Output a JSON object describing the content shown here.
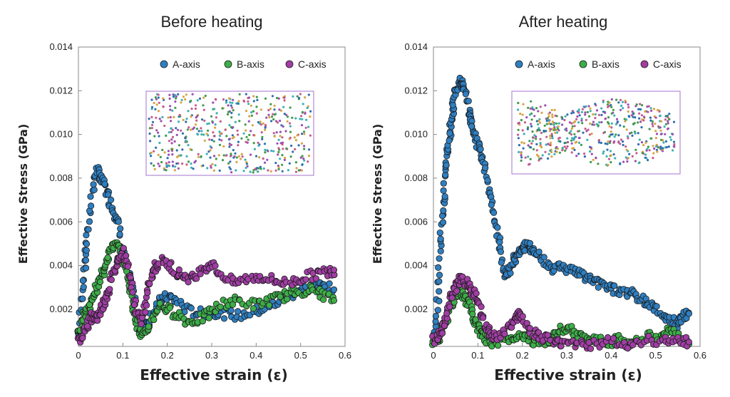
{
  "chart_data": [
    {
      "type": "scatter",
      "title": "Before heating",
      "xlabel": "Effective strain (ε)",
      "ylabel": "Effective Stress (GPa)",
      "xlim": [
        0,
        0.6
      ],
      "ylim": [
        0.0003,
        0.014
      ],
      "xticks": [
        "0",
        "0.1",
        "0.2",
        "0.3",
        "0.4",
        "0.5",
        "0.6"
      ],
      "yticks": [
        "0.002",
        "0.004",
        "0.006",
        "0.008",
        "0.010",
        "0.012",
        "0.014"
      ],
      "legend_position": "top-right",
      "inset": "molecular structure snapshot",
      "series": [
        {
          "name": "A-axis",
          "color": "#2f7fc1",
          "points": [
            [
              0,
              0.0007
            ],
            [
              0.01,
              0.003
            ],
            [
              0.015,
              0.0042
            ],
            [
              0.02,
              0.0052
            ],
            [
              0.03,
              0.0072
            ],
            [
              0.04,
              0.0084
            ],
            [
              0.05,
              0.008
            ],
            [
              0.06,
              0.0077
            ],
            [
              0.07,
              0.007
            ],
            [
              0.08,
              0.0065
            ],
            [
              0.09,
              0.006
            ],
            [
              0.1,
              0.0047
            ],
            [
              0.11,
              0.0038
            ],
            [
              0.12,
              0.003
            ],
            [
              0.13,
              0.002
            ],
            [
              0.14,
              0.0014
            ],
            [
              0.15,
              0.0011
            ],
            [
              0.16,
              0.0016
            ],
            [
              0.18,
              0.0023
            ],
            [
              0.2,
              0.0026
            ],
            [
              0.22,
              0.0024
            ],
            [
              0.25,
              0.0019
            ],
            [
              0.28,
              0.0018
            ],
            [
              0.3,
              0.0019
            ],
            [
              0.33,
              0.0018
            ],
            [
              0.36,
              0.0017
            ],
            [
              0.4,
              0.0019
            ],
            [
              0.43,
              0.0021
            ],
            [
              0.46,
              0.0025
            ],
            [
              0.49,
              0.0028
            ],
            [
              0.52,
              0.003
            ],
            [
              0.55,
              0.0031
            ],
            [
              0.575,
              0.0029
            ]
          ]
        },
        {
          "name": "B-axis",
          "color": "#3eae49",
          "points": [
            [
              0,
              0.0008
            ],
            [
              0.01,
              0.0016
            ],
            [
              0.02,
              0.002
            ],
            [
              0.03,
              0.0024
            ],
            [
              0.04,
              0.003
            ],
            [
              0.05,
              0.0034
            ],
            [
              0.06,
              0.004
            ],
            [
              0.07,
              0.0046
            ],
            [
              0.08,
              0.005
            ],
            [
              0.09,
              0.0048
            ],
            [
              0.1,
              0.0044
            ],
            [
              0.11,
              0.0036
            ],
            [
              0.12,
              0.0026
            ],
            [
              0.13,
              0.0014
            ],
            [
              0.14,
              0.0009
            ],
            [
              0.15,
              0.0008
            ],
            [
              0.16,
              0.0013
            ],
            [
              0.18,
              0.0022
            ],
            [
              0.2,
              0.002
            ],
            [
              0.22,
              0.0018
            ],
            [
              0.25,
              0.0014
            ],
            [
              0.28,
              0.0016
            ],
            [
              0.3,
              0.0019
            ],
            [
              0.33,
              0.0023
            ],
            [
              0.36,
              0.0024
            ],
            [
              0.4,
              0.0022
            ],
            [
              0.43,
              0.0024
            ],
            [
              0.46,
              0.0026
            ],
            [
              0.49,
              0.0028
            ],
            [
              0.52,
              0.0029
            ],
            [
              0.55,
              0.0027
            ],
            [
              0.575,
              0.0024
            ]
          ]
        },
        {
          "name": "C-axis",
          "color": "#a03ea3",
          "points": [
            [
              0,
              0.0005
            ],
            [
              0.01,
              0.0009
            ],
            [
              0.02,
              0.0013
            ],
            [
              0.03,
              0.0017
            ],
            [
              0.04,
              0.0016
            ],
            [
              0.05,
              0.002
            ],
            [
              0.06,
              0.0024
            ],
            [
              0.07,
              0.003
            ],
            [
              0.08,
              0.0038
            ],
            [
              0.09,
              0.0044
            ],
            [
              0.1,
              0.0046
            ],
            [
              0.11,
              0.004
            ],
            [
              0.12,
              0.003
            ],
            [
              0.13,
              0.002
            ],
            [
              0.14,
              0.0013
            ],
            [
              0.15,
              0.002
            ],
            [
              0.16,
              0.0032
            ],
            [
              0.17,
              0.0038
            ],
            [
              0.18,
              0.0042
            ],
            [
              0.2,
              0.0041
            ],
            [
              0.22,
              0.0037
            ],
            [
              0.24,
              0.0035
            ],
            [
              0.26,
              0.0034
            ],
            [
              0.28,
              0.0039
            ],
            [
              0.3,
              0.0041
            ],
            [
              0.32,
              0.0036
            ],
            [
              0.35,
              0.0032
            ],
            [
              0.38,
              0.0034
            ],
            [
              0.41,
              0.0035
            ],
            [
              0.44,
              0.0033
            ],
            [
              0.47,
              0.0032
            ],
            [
              0.5,
              0.0034
            ],
            [
              0.53,
              0.0036
            ],
            [
              0.56,
              0.0037
            ],
            [
              0.575,
              0.0038
            ]
          ]
        }
      ]
    },
    {
      "type": "scatter",
      "title": "After heating",
      "xlabel": "Effective strain (ε)",
      "ylabel": "Effective Stress (GPa)",
      "xlim": [
        0,
        0.6
      ],
      "ylim": [
        0.0003,
        0.014
      ],
      "xticks": [
        "0",
        "0.1",
        "0.2",
        "0.3",
        "0.4",
        "0.5",
        "0.6"
      ],
      "yticks": [
        "0.002",
        "0.004",
        "0.006",
        "0.008",
        "0.010",
        "0.012",
        "0.014"
      ],
      "legend_position": "top-right",
      "inset": "molecular structure snapshot",
      "series": [
        {
          "name": "A-axis",
          "color": "#2f7fc1",
          "points": [
            [
              0,
              0.0004
            ],
            [
              0.005,
              0.001
            ],
            [
              0.01,
              0.0025
            ],
            [
              0.015,
              0.0045
            ],
            [
              0.02,
              0.0062
            ],
            [
              0.025,
              0.0075
            ],
            [
              0.03,
              0.0088
            ],
            [
              0.035,
              0.0098
            ],
            [
              0.04,
              0.0106
            ],
            [
              0.045,
              0.0114
            ],
            [
              0.05,
              0.012
            ],
            [
              0.06,
              0.0125
            ],
            [
              0.065,
              0.0122
            ],
            [
              0.07,
              0.012
            ],
            [
              0.08,
              0.0112
            ],
            [
              0.085,
              0.0105
            ],
            [
              0.09,
              0.01
            ],
            [
              0.1,
              0.0094
            ],
            [
              0.11,
              0.0089
            ],
            [
              0.12,
              0.0082
            ],
            [
              0.13,
              0.007
            ],
            [
              0.14,
              0.0058
            ],
            [
              0.15,
              0.0048
            ],
            [
              0.16,
              0.0036
            ],
            [
              0.17,
              0.0038
            ],
            [
              0.18,
              0.0042
            ],
            [
              0.19,
              0.0046
            ],
            [
              0.2,
              0.0048
            ],
            [
              0.21,
              0.0049
            ],
            [
              0.22,
              0.0048
            ],
            [
              0.23,
              0.0046
            ],
            [
              0.25,
              0.0042
            ],
            [
              0.27,
              0.0039
            ],
            [
              0.29,
              0.004
            ],
            [
              0.31,
              0.0038
            ],
            [
              0.33,
              0.0036
            ],
            [
              0.35,
              0.0034
            ],
            [
              0.37,
              0.0032
            ],
            [
              0.39,
              0.0031
            ],
            [
              0.41,
              0.0029
            ],
            [
              0.43,
              0.0028
            ],
            [
              0.45,
              0.0027
            ],
            [
              0.47,
              0.0024
            ],
            [
              0.49,
              0.0022
            ],
            [
              0.51,
              0.0019
            ],
            [
              0.53,
              0.0015
            ],
            [
              0.55,
              0.0013
            ],
            [
              0.56,
              0.0016
            ],
            [
              0.575,
              0.0018
            ]
          ]
        },
        {
          "name": "B-axis",
          "color": "#3eae49",
          "points": [
            [
              0,
              0.0004
            ],
            [
              0.01,
              0.0006
            ],
            [
              0.02,
              0.001
            ],
            [
              0.03,
              0.0016
            ],
            [
              0.04,
              0.0022
            ],
            [
              0.05,
              0.0026
            ],
            [
              0.06,
              0.0028
            ],
            [
              0.07,
              0.0026
            ],
            [
              0.08,
              0.0022
            ],
            [
              0.09,
              0.0016
            ],
            [
              0.1,
              0.0012
            ],
            [
              0.11,
              0.0008
            ],
            [
              0.12,
              0.0006
            ],
            [
              0.14,
              0.0005
            ],
            [
              0.16,
              0.0006
            ],
            [
              0.18,
              0.0007
            ],
            [
              0.2,
              0.0009
            ],
            [
              0.22,
              0.0006
            ],
            [
              0.24,
              0.0005
            ],
            [
              0.26,
              0.0006
            ],
            [
              0.28,
              0.001
            ],
            [
              0.3,
              0.0012
            ],
            [
              0.32,
              0.0008
            ],
            [
              0.34,
              0.0006
            ],
            [
              0.36,
              0.0007
            ],
            [
              0.38,
              0.0006
            ],
            [
              0.4,
              0.0005
            ],
            [
              0.42,
              0.0006
            ],
            [
              0.45,
              0.0005
            ],
            [
              0.48,
              0.0007
            ],
            [
              0.51,
              0.0008
            ],
            [
              0.53,
              0.001
            ],
            [
              0.55,
              0.0007
            ],
            [
              0.575,
              0.0004
            ]
          ]
        },
        {
          "name": "C-axis",
          "color": "#a03ea3",
          "points": [
            [
              0,
              0.0006
            ],
            [
              0.01,
              0.0007
            ],
            [
              0.02,
              0.001
            ],
            [
              0.03,
              0.0018
            ],
            [
              0.04,
              0.0026
            ],
            [
              0.05,
              0.003
            ],
            [
              0.06,
              0.0034
            ],
            [
              0.07,
              0.0033
            ],
            [
              0.08,
              0.003
            ],
            [
              0.09,
              0.0028
            ],
            [
              0.1,
              0.0026
            ],
            [
              0.11,
              0.0016
            ],
            [
              0.12,
              0.0011
            ],
            [
              0.13,
              0.0008
            ],
            [
              0.14,
              0.0007
            ],
            [
              0.16,
              0.0009
            ],
            [
              0.18,
              0.0014
            ],
            [
              0.19,
              0.0018
            ],
            [
              0.2,
              0.0016
            ],
            [
              0.22,
              0.001
            ],
            [
              0.24,
              0.0007
            ],
            [
              0.26,
              0.0006
            ],
            [
              0.28,
              0.0005
            ],
            [
              0.3,
              0.0005
            ],
            [
              0.33,
              0.0004
            ],
            [
              0.36,
              0.0004
            ],
            [
              0.4,
              0.0005
            ],
            [
              0.44,
              0.0004
            ],
            [
              0.48,
              0.0006
            ],
            [
              0.52,
              0.0006
            ],
            [
              0.55,
              0.0005
            ],
            [
              0.575,
              0.0005
            ]
          ]
        }
      ]
    }
  ]
}
